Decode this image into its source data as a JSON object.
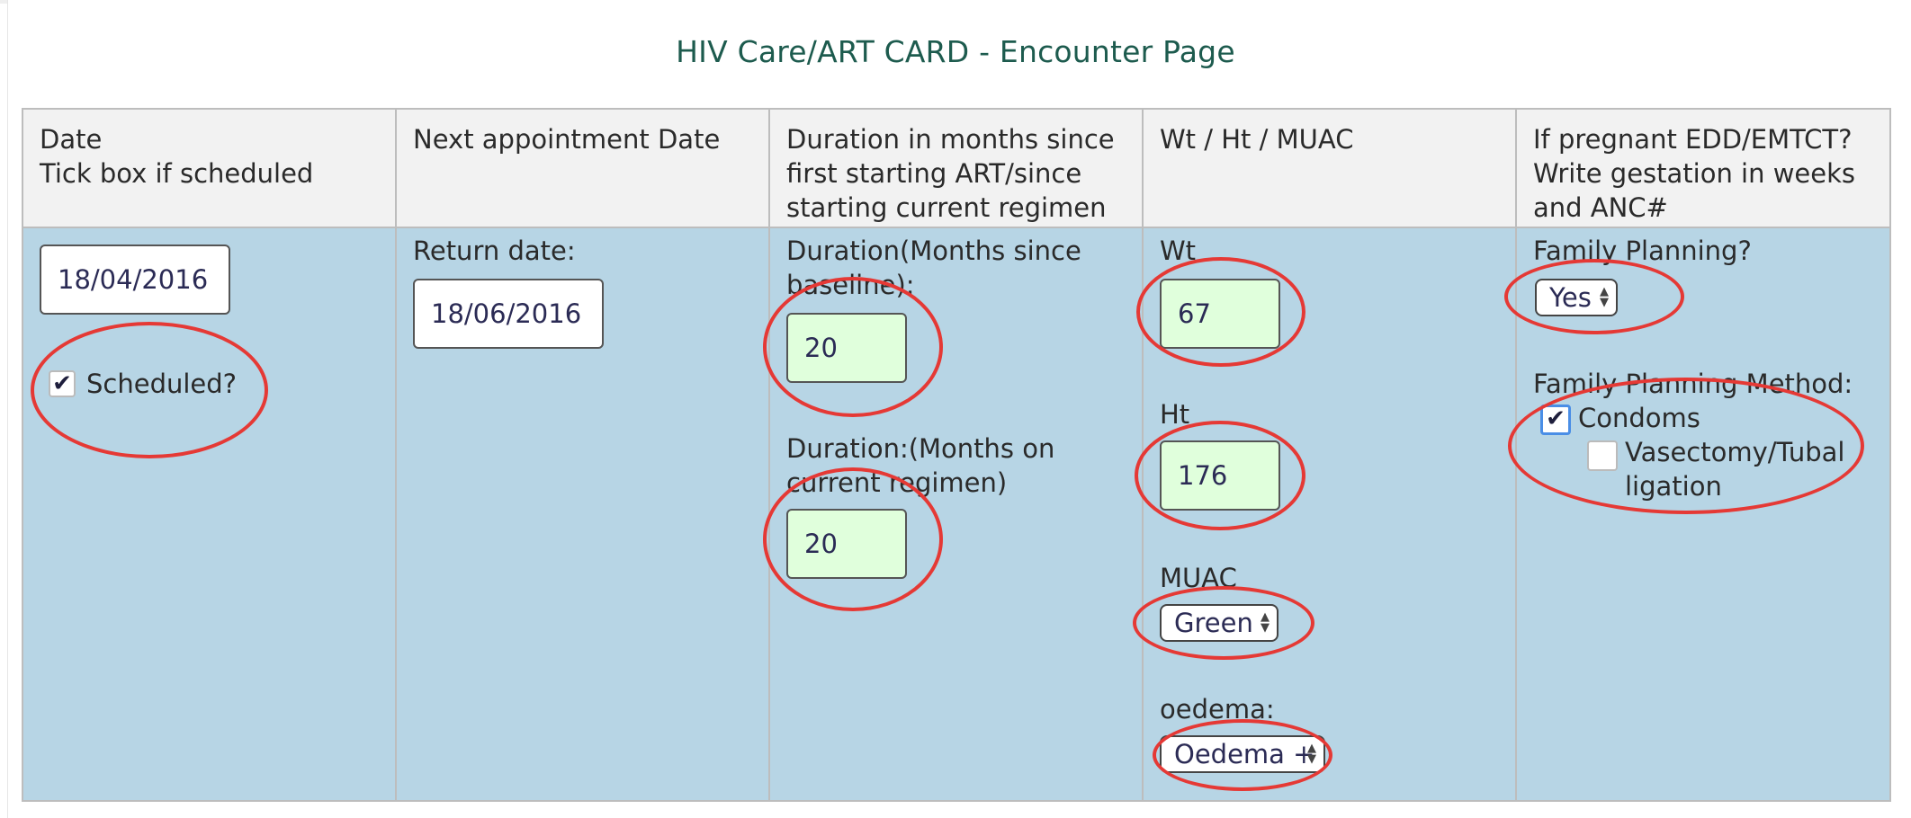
{
  "page_title": "HIV Care/ART CARD - Encounter Page",
  "headers": {
    "date": [
      "Date",
      "Tick box if scheduled"
    ],
    "next_appointment": [
      "Next appointment Date"
    ],
    "duration": [
      "Duration in months since",
      "first starting ART/since",
      "starting current regimen"
    ],
    "measurements": [
      "Wt / Ht / MUAC"
    ],
    "pregnancy": [
      "If pregnant EDD/EMTCT?",
      "Write gestation in weeks",
      "and ANC#"
    ]
  },
  "date_col": {
    "date_value": "18/04/2016",
    "scheduled_label": "Scheduled?",
    "scheduled_checked": true
  },
  "next_col": {
    "return_label": "Return date:",
    "return_value": "18/06/2016"
  },
  "duration_col": {
    "baseline_label": "Duration(Months since baseline):",
    "baseline_value": "20",
    "regimen_label": "Duration:(Months on current regimen)",
    "regimen_value": "20"
  },
  "measure_col": {
    "wt_label": "Wt",
    "wt_value": "67",
    "ht_label": "Ht",
    "ht_value": "176",
    "muac_label": "MUAC",
    "muac_value": "Green",
    "oedema_label": "oedema:",
    "oedema_value": "Oedema +"
  },
  "fp_col": {
    "fp_label": "Family Planning?",
    "fp_value": "Yes",
    "method_label": "Family Planning Method:",
    "method_condoms": "Condoms",
    "method_condoms_checked": true,
    "method_vasectomy": "Vasectomy/Tubal ligation",
    "method_vasectomy_checked": false
  },
  "icons": {
    "check": "✔",
    "select_arrows": "▲▼"
  },
  "colors": {
    "title": "#1d5b4e",
    "cell_bg": "#b7d5e5",
    "header_bg": "#f2f2f2",
    "field_green": "#e0ffdc",
    "annotation_red": "#e53935"
  }
}
